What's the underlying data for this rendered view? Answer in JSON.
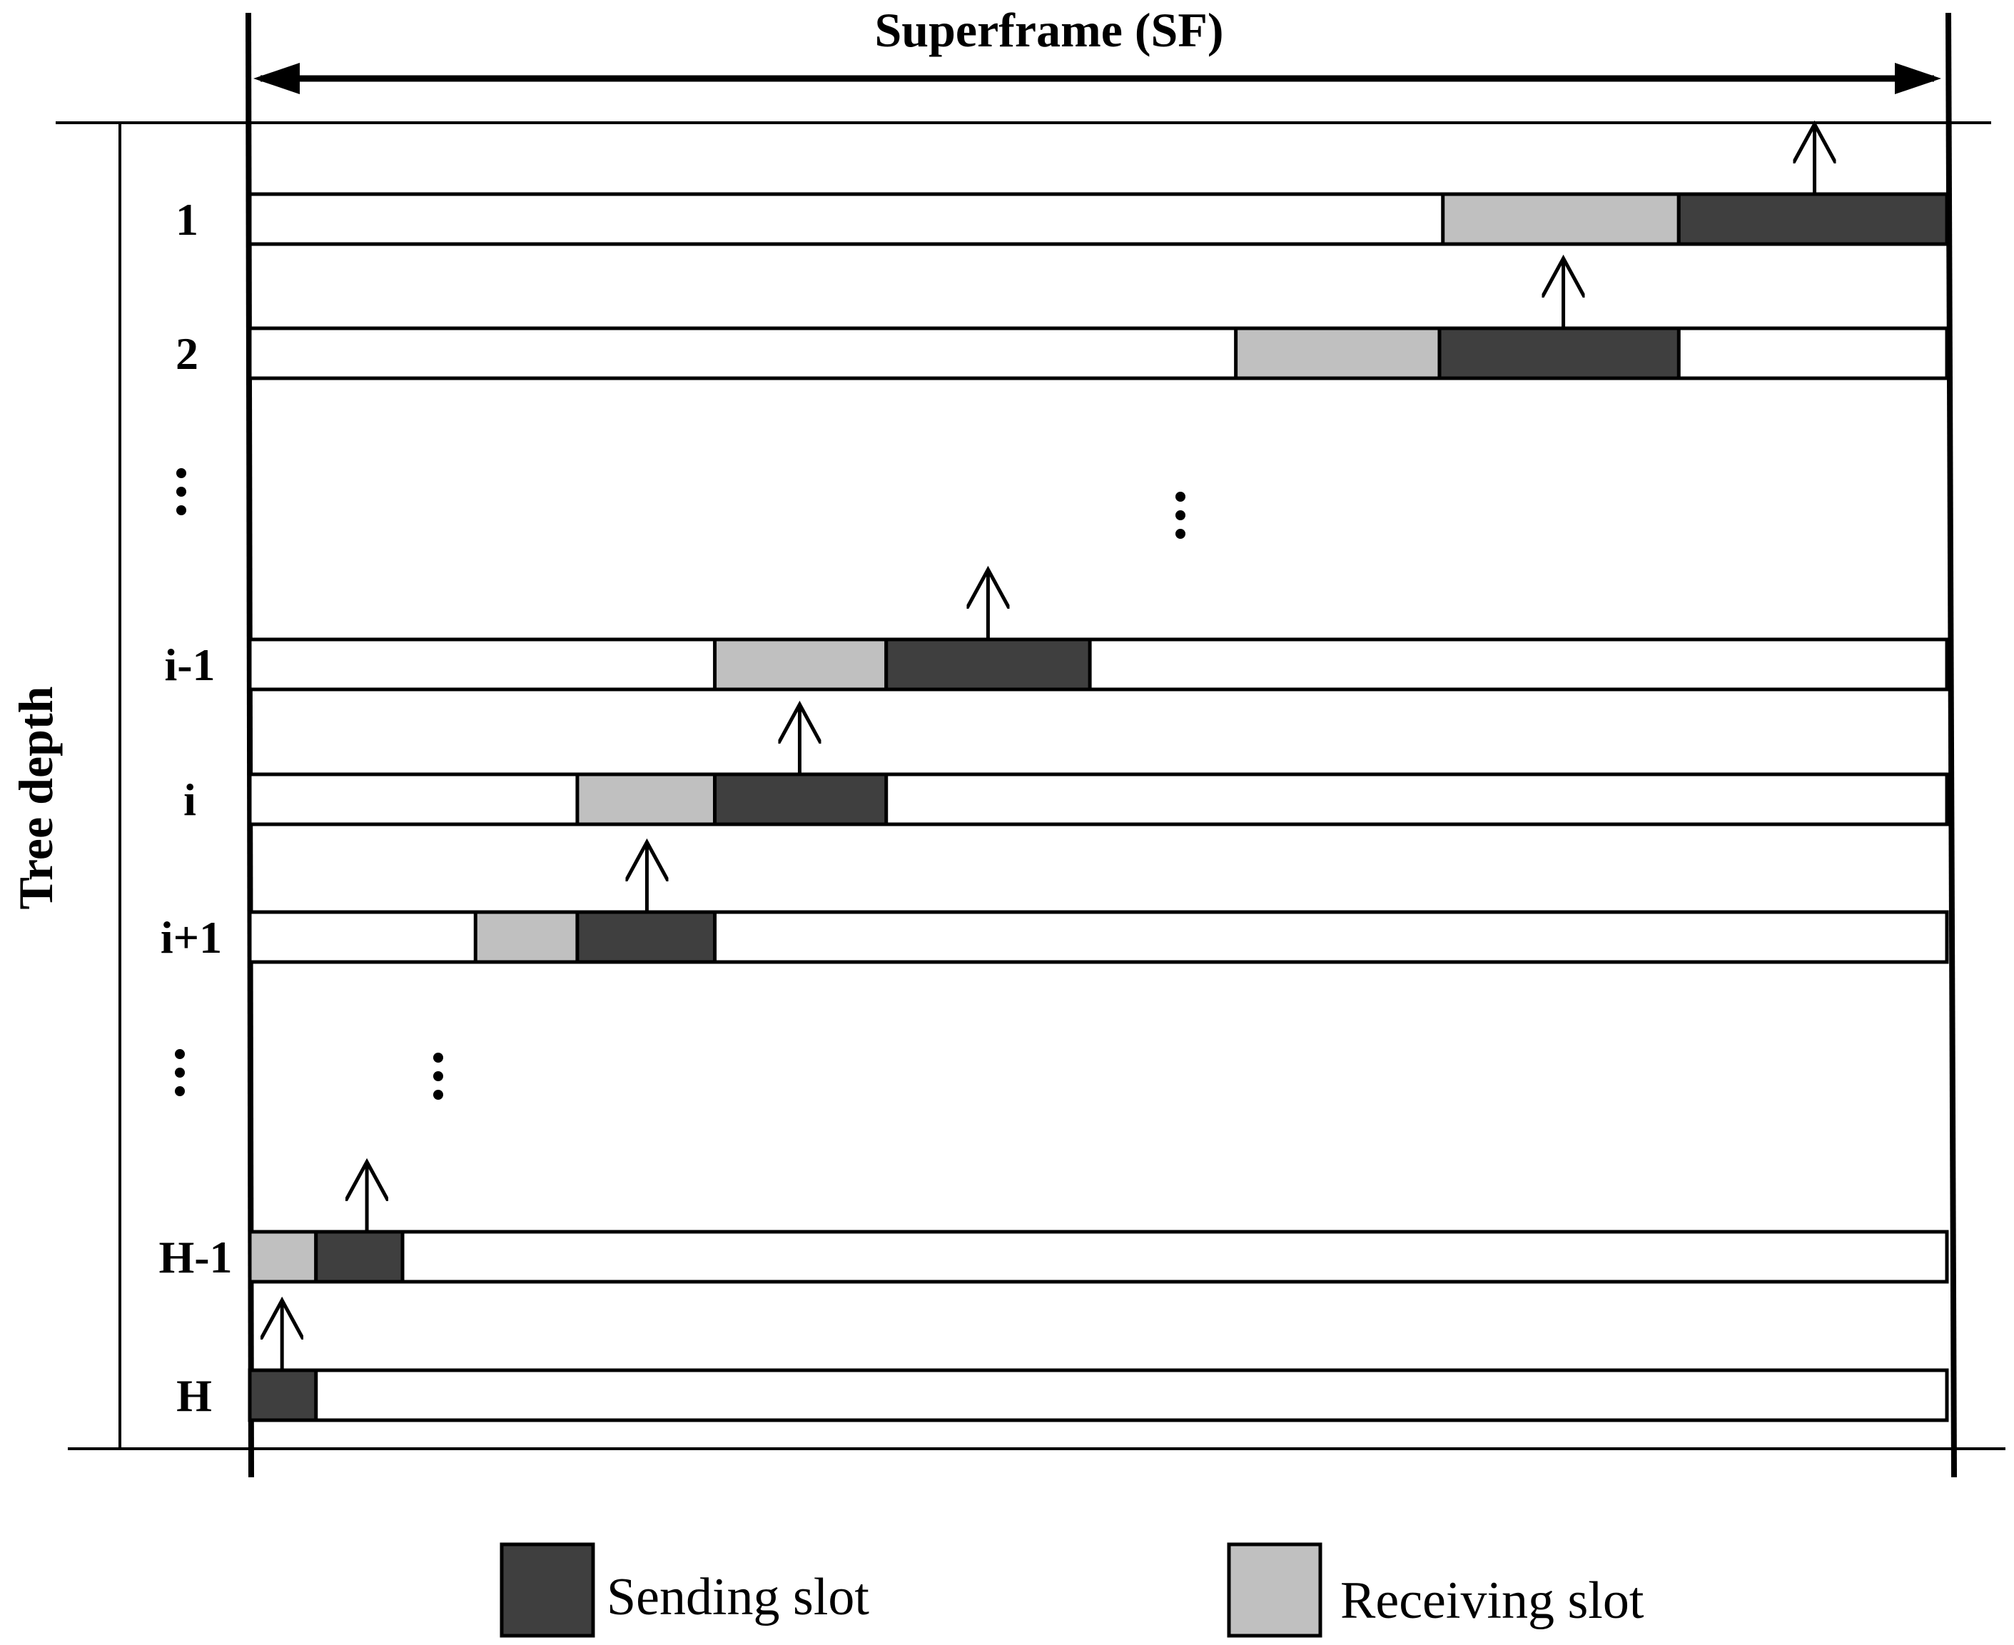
{
  "title": "Superframe (SF)",
  "axis_label": "Tree depth",
  "colors": {
    "sending": "#3f3f3f",
    "receiving": "#c0c0c0",
    "line": "#000000",
    "background": "#ffffff"
  },
  "rows": [
    {
      "label": "1",
      "receive": [
        0.703,
        0.842
      ],
      "send": [
        0.842,
        1.0
      ],
      "arrow": 0.922
    },
    {
      "label": "2",
      "receive": [
        0.581,
        0.701
      ],
      "send": [
        0.701,
        0.842
      ],
      "arrow": 0.774
    },
    {
      "label": "i-1",
      "receive": [
        0.274,
        0.375
      ],
      "send": [
        0.375,
        0.495
      ],
      "arrow": 0.435
    },
    {
      "label": "i",
      "receive": [
        0.193,
        0.274
      ],
      "send": [
        0.274,
        0.375
      ],
      "arrow": 0.324
    },
    {
      "label": "i+1",
      "receive": [
        0.133,
        0.193
      ],
      "send": [
        0.193,
        0.274
      ],
      "arrow": 0.234
    },
    {
      "label": "H-1",
      "receive": [
        0.0,
        0.039
      ],
      "send": [
        0.039,
        0.09
      ],
      "arrow": 0.069
    },
    {
      "label": "H",
      "receive": null,
      "send": [
        0.0,
        0.039
      ],
      "arrow": 0.019
    }
  ],
  "ellipsis": "⋮",
  "legend": {
    "sending": "Sending slot",
    "receiving": "Receiving slot"
  }
}
